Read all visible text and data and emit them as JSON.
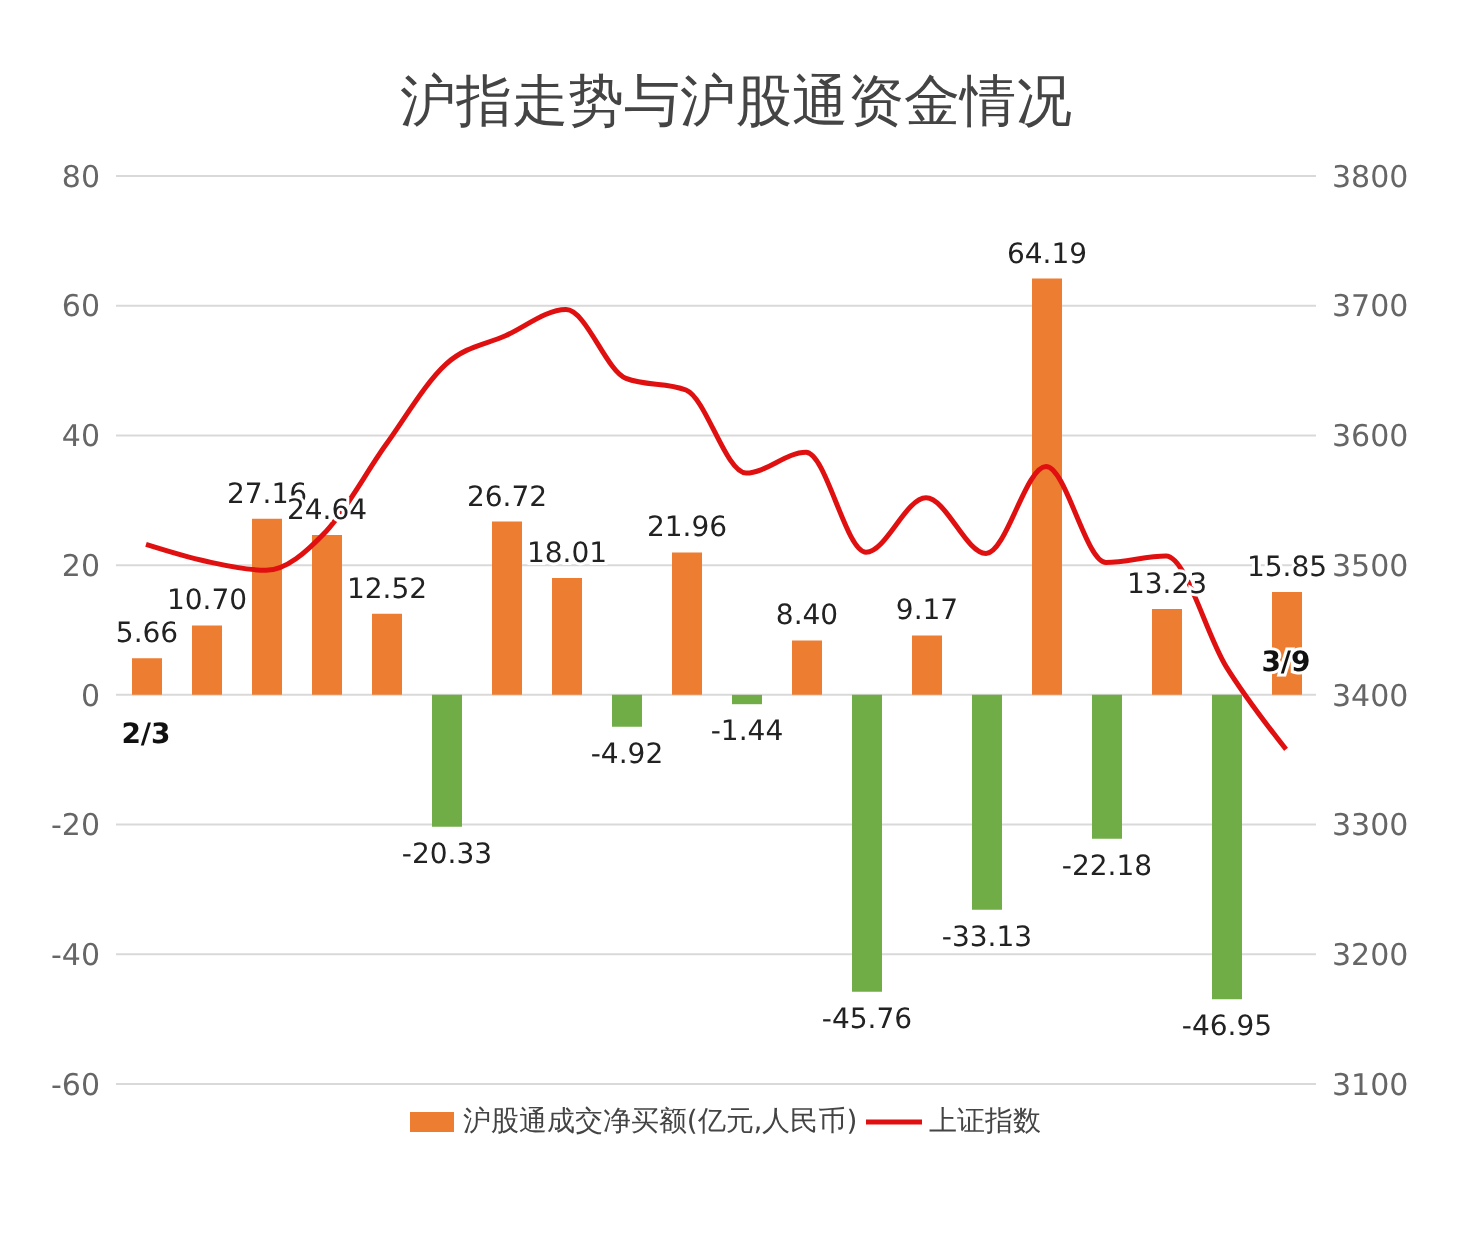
{
  "chart_data": {
    "type": "bar",
    "title": "沪指走势与沪股通资金情况",
    "categories": [
      null,
      null,
      null,
      null,
      null,
      null,
      null,
      null,
      null,
      null,
      null,
      null,
      null,
      null,
      null,
      null,
      null,
      null,
      null,
      null
    ],
    "series": [
      {
        "name": "沪股通成交净买额(亿元,人民币)",
        "color": "#ed7d31",
        "colors": [
          "#ed7d31",
          "#ed7d31",
          "#ed7d31",
          "#ed7d31",
          "#ed7d31",
          "#70ad47",
          "#ed7d31",
          "#ed7d31",
          "#70ad47",
          "#ed7d31",
          "#70ad47",
          "#ed7d31",
          "#70ad47",
          "#ed7d31",
          "#70ad47",
          "#ed7d31",
          "#70ad47",
          "#ed7d31",
          "#70ad47",
          "#ed7d31"
        ],
        "values": [
          5.66,
          10.7,
          27.16,
          24.64,
          12.52,
          -20.33,
          26.72,
          18.01,
          -4.92,
          21.96,
          -1.44,
          8.4,
          -45.76,
          9.17,
          -33.13,
          64.19,
          -22.18,
          13.23,
          -46.95,
          15.85
        ],
        "value_labels": [
          "5.66",
          "10.70",
          "27.16",
          "24.64",
          "12.52",
          "-20.33",
          "26.72",
          "18.01",
          "-4.92",
          "21.96",
          "-1.44",
          "8.40",
          "-45.76",
          "9.17",
          "-33.13",
          "64.19",
          "-22.18",
          "13.23",
          "-46.95",
          "15.85"
        ]
      },
      {
        "name": "上证指数",
        "type": "line",
        "axis": "y2",
        "color": "#e01010",
        "values": [
          3516,
          3503,
          3496,
          3526,
          3593,
          3655,
          3677,
          3697,
          3644,
          3635,
          3571,
          3587,
          3510,
          3552,
          3509,
          3576,
          3502,
          3507,
          3422,
          3358
        ]
      }
    ],
    "ylim": [
      -60,
      80
    ],
    "yticks": [
      -60,
      -40,
      -20,
      0,
      20,
      40,
      60,
      80
    ],
    "y2lim": [
      3100,
      3800
    ],
    "y2ticks": [
      3100,
      3200,
      3300,
      3400,
      3500,
      3600,
      3700,
      3800
    ],
    "grid": "y",
    "legend": "bottom",
    "marker": "none",
    "line_style": "solid",
    "annotations": [
      "2/3",
      "3/9"
    ]
  }
}
